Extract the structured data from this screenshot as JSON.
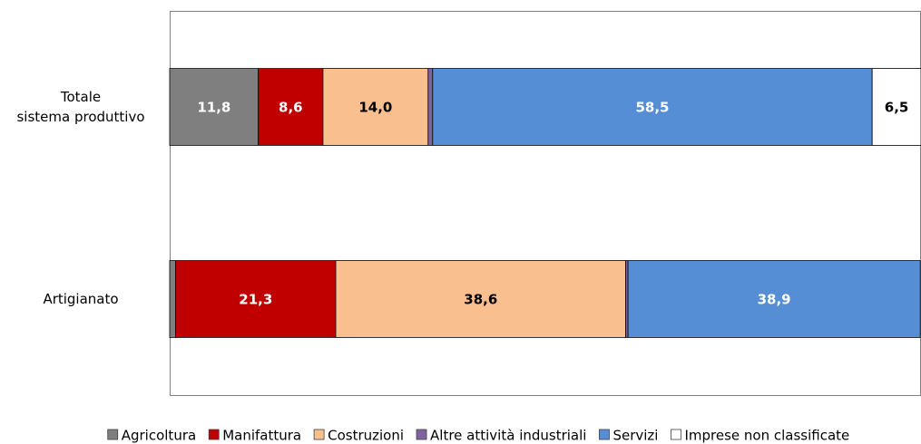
{
  "chart_data": {
    "type": "stacked-bar-horizontal",
    "categories": [
      "Totale\nsistema produttivo",
      "Artigianato"
    ],
    "xlim": [
      0,
      100
    ],
    "series": [
      {
        "name": "Agricoltura",
        "color": "#7f7f7f",
        "values": [
          11.8,
          0.8
        ],
        "value_labels": [
          "11,8",
          null
        ]
      },
      {
        "name": "Manifattura",
        "color": "#c00000",
        "values": [
          8.6,
          21.3
        ],
        "value_labels": [
          "8,6",
          "21,3"
        ]
      },
      {
        "name": "Costruzioni",
        "color": "#f9bf8f",
        "values": [
          14.0,
          38.6
        ],
        "value_labels": [
          "14,0",
          "38,6"
        ]
      },
      {
        "name": "Altre attività industriali",
        "color": "#8064a2",
        "values": [
          0.6,
          0.3
        ],
        "value_labels": [
          null,
          null
        ]
      },
      {
        "name": "Servizi",
        "color": "#558ed5",
        "values": [
          58.5,
          38.9
        ],
        "value_labels": [
          "58,5",
          "38,9"
        ]
      },
      {
        "name": "Imprese non classificate",
        "color": "#ffffff",
        "values": [
          6.5,
          0
        ],
        "value_labels": [
          "6,5",
          null
        ]
      }
    ],
    "legend": "bottom"
  }
}
